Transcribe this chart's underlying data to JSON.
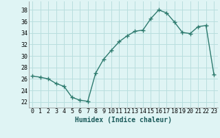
{
  "x": [
    0,
    1,
    2,
    3,
    4,
    5,
    6,
    7,
    8,
    9,
    10,
    11,
    12,
    13,
    14,
    15,
    16,
    17,
    18,
    19,
    20,
    21,
    22,
    23
  ],
  "y": [
    26.5,
    26.3,
    26.0,
    25.2,
    24.7,
    22.8,
    22.3,
    22.1,
    27.0,
    29.4,
    31.0,
    32.5,
    33.5,
    34.3,
    34.5,
    36.5,
    38.0,
    37.5,
    35.9,
    34.1,
    33.9,
    35.1,
    35.3,
    26.8
  ],
  "line_color": "#2d7a6e",
  "marker": "+",
  "markersize": 4,
  "linewidth": 1.0,
  "bg_color": "#dff4f4",
  "grid_color": "#b8dede",
  "xlabel": "Humidex (Indice chaleur)",
  "xlabel_fontsize": 7,
  "ytick_values": [
    22,
    24,
    26,
    28,
    30,
    32,
    34,
    36,
    38
  ],
  "ylim": [
    21.0,
    39.5
  ],
  "xlim": [
    -0.5,
    23.5
  ],
  "xtick_labels": [
    "0",
    "1",
    "2",
    "3",
    "4",
    "5",
    "6",
    "7",
    "8",
    "9",
    "10",
    "11",
    "12",
    "13",
    "14",
    "15",
    "16",
    "17",
    "18",
    "19",
    "20",
    "21",
    "22",
    "23"
  ],
  "tick_fontsize": 6,
  "xlabel_color": "#1a5a5a"
}
